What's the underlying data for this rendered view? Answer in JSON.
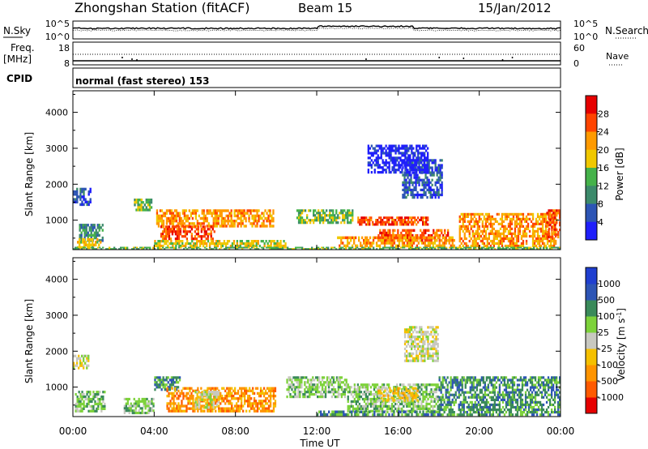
{
  "header": {
    "station": "Zhongshan Station (fitACF)",
    "beam": "Beam 15",
    "date": "15/Jan/2012"
  },
  "labels": {
    "nsky": "N.Sky",
    "nsearch": "N.Search",
    "freq": "Freq.",
    "mhz": "[MHz]",
    "nave": "Nave",
    "cpid": "CPID",
    "cpid_value": "normal (fast stereo) 153",
    "xlabel": "Time UT",
    "ylabel": "Slant Range [km]",
    "power_label": "Power [dB]",
    "velocity_label": "Velocity [m s",
    "velocity_sup": "-1",
    "velocity_close": "]"
  },
  "noise_panel": {
    "left_ticks": [
      "10^5",
      "10^0"
    ],
    "right_ticks": [
      "10^5",
      "10^0"
    ]
  },
  "freq_panel": {
    "left_ticks": [
      "18",
      "8"
    ],
    "right_ticks": [
      "60",
      "0"
    ]
  },
  "colors": {
    "power": [
      "#1f1ffb",
      "#2d55b5",
      "#3c8a6b",
      "#45b24a",
      "#f0c800",
      "#ff9a00",
      "#ff4400",
      "#e60000"
    ],
    "velocity": [
      "#e60000",
      "#ff5a00",
      "#ff9400",
      "#f5c000",
      "#c8c8c0",
      "#7dd23a",
      "#3a8a5a",
      "#2d55b5",
      "#1f3fd0"
    ]
  },
  "chart_data": [
    {
      "type": "heatmap",
      "name": "Power",
      "xlabel": "Time UT",
      "ylabel": "Slant Range [km]",
      "x_ticks": [
        "00:00",
        "04:00",
        "08:00",
        "12:00",
        "16:00",
        "20:00",
        "00:00"
      ],
      "xlim_hours": [
        0,
        24
      ],
      "y_ticks": [
        1000,
        2000,
        3000,
        4000
      ],
      "ylim": [
        180,
        4600
      ],
      "colorbar": {
        "label": "Power [dB]",
        "ticks": [
          4,
          8,
          12,
          16,
          20,
          24,
          28
        ],
        "range": [
          0,
          32
        ]
      },
      "features": [
        {
          "t": [
            0.3,
            1.5
          ],
          "r": [
            400,
            900
          ],
          "level": 2
        },
        {
          "t": [
            0.2,
            1.4
          ],
          "r": [
            200,
            500
          ],
          "level": 4
        },
        {
          "t": [
            0.0,
            0.9
          ],
          "r": [
            1400,
            1900
          ],
          "level": 1
        },
        {
          "t": [
            3.0,
            3.9
          ],
          "r": [
            1250,
            1600
          ],
          "level": 3
        },
        {
          "t": [
            4.1,
            9.9
          ],
          "r": [
            800,
            1300
          ],
          "level": 5
        },
        {
          "t": [
            4.3,
            7.0
          ],
          "r": [
            450,
            850
          ],
          "level": 6
        },
        {
          "t": [
            4.0,
            10.5
          ],
          "r": [
            250,
            450
          ],
          "level": 4
        },
        {
          "t": [
            11.0,
            13.8
          ],
          "r": [
            900,
            1300
          ],
          "level": 3
        },
        {
          "t": [
            14.0,
            17.5
          ],
          "r": [
            850,
            1100
          ],
          "level": 6
        },
        {
          "t": [
            15.0,
            18.5
          ],
          "r": [
            400,
            750
          ],
          "level": 6
        },
        {
          "t": [
            13.0,
            18.8
          ],
          "r": [
            250,
            550
          ],
          "level": 5
        },
        {
          "t": [
            16.2,
            18.2
          ],
          "r": [
            1600,
            2700
          ],
          "level": 1
        },
        {
          "t": [
            14.5,
            17.5
          ],
          "r": [
            2300,
            3100
          ],
          "level": 0
        },
        {
          "t": [
            19.0,
            23.8
          ],
          "r": [
            250,
            1200
          ],
          "level": 5
        },
        {
          "t": [
            23.3,
            24.0
          ],
          "r": [
            500,
            1300
          ],
          "level": 6
        },
        {
          "t": [
            0.0,
            24.0
          ],
          "r": [
            180,
            260
          ],
          "level": 3
        }
      ]
    },
    {
      "type": "heatmap",
      "name": "Velocity",
      "xlabel": "Time UT",
      "ylabel": "Slant Range [km]",
      "x_ticks": [
        "00:00",
        "04:00",
        "08:00",
        "12:00",
        "16:00",
        "20:00",
        "00:00"
      ],
      "xlim_hours": [
        0,
        24
      ],
      "y_ticks": [
        1000,
        2000,
        3000,
        4000
      ],
      "ylim": [
        180,
        4600
      ],
      "colorbar": {
        "label": "Velocity [m s-1]",
        "ticks": [
          "-1000",
          "-500",
          "-100",
          "-25",
          "25",
          "100",
          "500",
          "1000"
        ]
      },
      "features": [
        {
          "t": [
            0.1,
            1.6
          ],
          "r": [
            300,
            900
          ],
          "level": 5
        },
        {
          "t": [
            0.0,
            0.8
          ],
          "r": [
            1500,
            1900
          ],
          "level": 4
        },
        {
          "t": [
            2.5,
            4.0
          ],
          "r": [
            250,
            700
          ],
          "level": 5
        },
        {
          "t": [
            4.0,
            5.3
          ],
          "r": [
            900,
            1300
          ],
          "level": 6
        },
        {
          "t": [
            4.6,
            10.0
          ],
          "r": [
            300,
            1000
          ],
          "level": 2
        },
        {
          "t": [
            6.0,
            7.2
          ],
          "r": [
            400,
            900
          ],
          "level": 4
        },
        {
          "t": [
            10.5,
            13.5
          ],
          "r": [
            700,
            1300
          ],
          "level": 5
        },
        {
          "t": [
            13.5,
            18.0
          ],
          "r": [
            300,
            1100
          ],
          "level": 5
        },
        {
          "t": [
            15.0,
            17.0
          ],
          "r": [
            600,
            1000
          ],
          "level": 3
        },
        {
          "t": [
            16.3,
            18.0
          ],
          "r": [
            1700,
            2700
          ],
          "level": 4
        },
        {
          "t": [
            18.0,
            24.0
          ],
          "r": [
            200,
            1300
          ],
          "level": 6
        },
        {
          "t": [
            12.0,
            18.0
          ],
          "r": [
            200,
            350
          ],
          "level": 6
        }
      ]
    }
  ]
}
